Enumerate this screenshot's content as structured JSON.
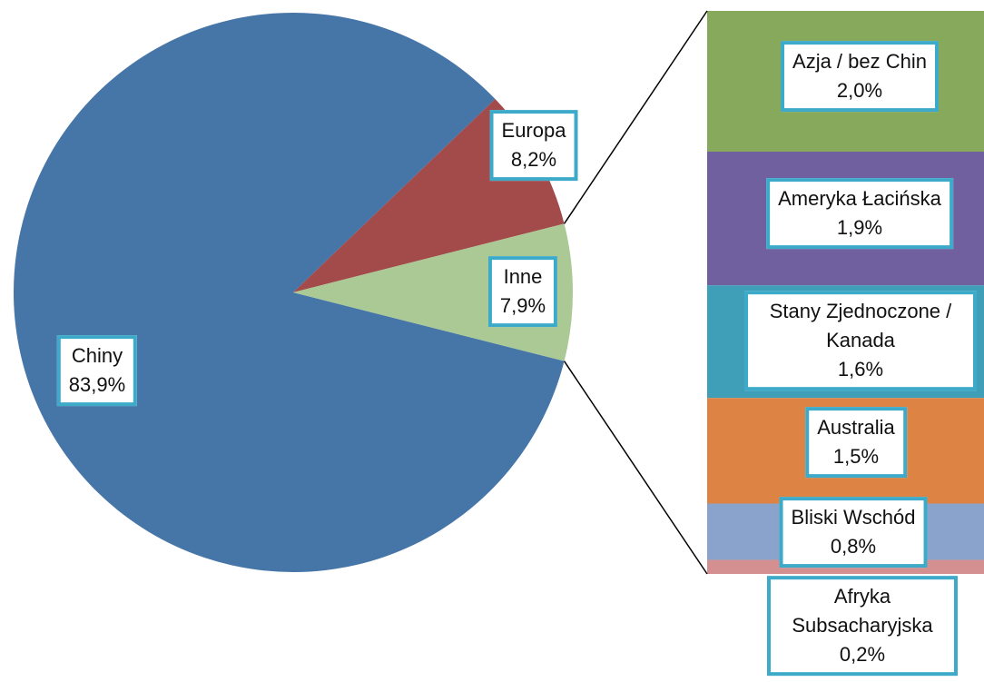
{
  "chart_data": {
    "type": "pie",
    "categories": [
      "Chiny",
      "Europa",
      "Inne"
    ],
    "values": [
      83.9,
      8.2,
      7.9
    ],
    "value_labels": [
      "83,9%",
      "8,2%",
      "7,9%"
    ],
    "colors": [
      "#4675a8",
      "#a34a4a",
      "#aac994"
    ],
    "breakdown": {
      "categories": [
        "Azja / bez Chin",
        "Ameryka Łacińska",
        "Stany Zjednoczone / Kanada",
        "Australia",
        "Bliski Wschód",
        "Afryka Subsacharyjska"
      ],
      "values": [
        2.0,
        1.9,
        1.6,
        1.5,
        0.8,
        0.2
      ],
      "value_labels": [
        "2,0%",
        "1,9%",
        "1,6%",
        "1,5%",
        "0,8%",
        "0,2%"
      ],
      "colors": [
        "#86a95b",
        "#7060a0",
        "#3f9fb8",
        "#dd8444",
        "#8aa3cc",
        "#d49090"
      ]
    }
  }
}
